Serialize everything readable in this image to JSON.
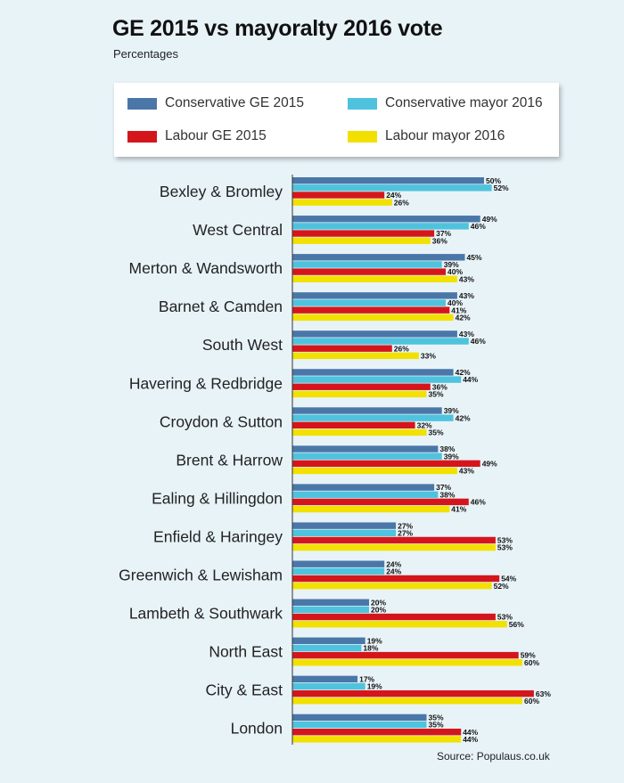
{
  "title": "GE 2015 vs mayoralty 2016 vote",
  "subtitle": "Percentages",
  "source": "Source: Populaus.co.uk",
  "legend": [
    {
      "label": "Conservative GE 2015",
      "color": "#4a77a8"
    },
    {
      "label": "Conservative mayor 2016",
      "color": "#4fc3dd"
    },
    {
      "label": "Labour GE 2015",
      "color": "#d4161c"
    },
    {
      "label": "Labour mayor 2016",
      "color": "#f2e100"
    }
  ],
  "chart_data": {
    "type": "bar",
    "orientation": "horizontal",
    "title": "GE 2015 vs mayoralty 2016 vote",
    "subtitle": "Percentages",
    "unit": "%",
    "categories": [
      "Bexley & Bromley",
      "West Central",
      "Merton & Wandsworth",
      "Barnet & Camden",
      "South West",
      "Havering & Redbridge",
      "Croydon & Sutton",
      "Brent & Harrow",
      "Ealing & Hillingdon",
      "Enfield & Haringey",
      "Greenwich & Lewisham",
      "Lambeth & Southwark",
      "North East",
      "City & East",
      "London"
    ],
    "series": [
      {
        "name": "Conservative GE 2015",
        "color": "#4a77a8",
        "values": [
          50,
          49,
          45,
          43,
          43,
          42,
          39,
          38,
          37,
          27,
          24,
          20,
          19,
          17,
          35
        ]
      },
      {
        "name": "Conservative mayor 2016",
        "color": "#4fc3dd",
        "values": [
          52,
          46,
          39,
          40,
          46,
          44,
          42,
          39,
          38,
          27,
          24,
          20,
          18,
          19,
          35
        ]
      },
      {
        "name": "Labour GE 2015",
        "color": "#d4161c",
        "values": [
          24,
          37,
          40,
          41,
          26,
          36,
          32,
          49,
          46,
          53,
          54,
          53,
          59,
          63,
          44
        ]
      },
      {
        "name": "Labour mayor 2016",
        "color": "#f2e100",
        "values": [
          26,
          36,
          43,
          42,
          33,
          35,
          35,
          43,
          41,
          53,
          52,
          56,
          60,
          60,
          44
        ]
      }
    ],
    "xlim": [
      0,
      65
    ],
    "grid": false,
    "legend_position": "top"
  }
}
